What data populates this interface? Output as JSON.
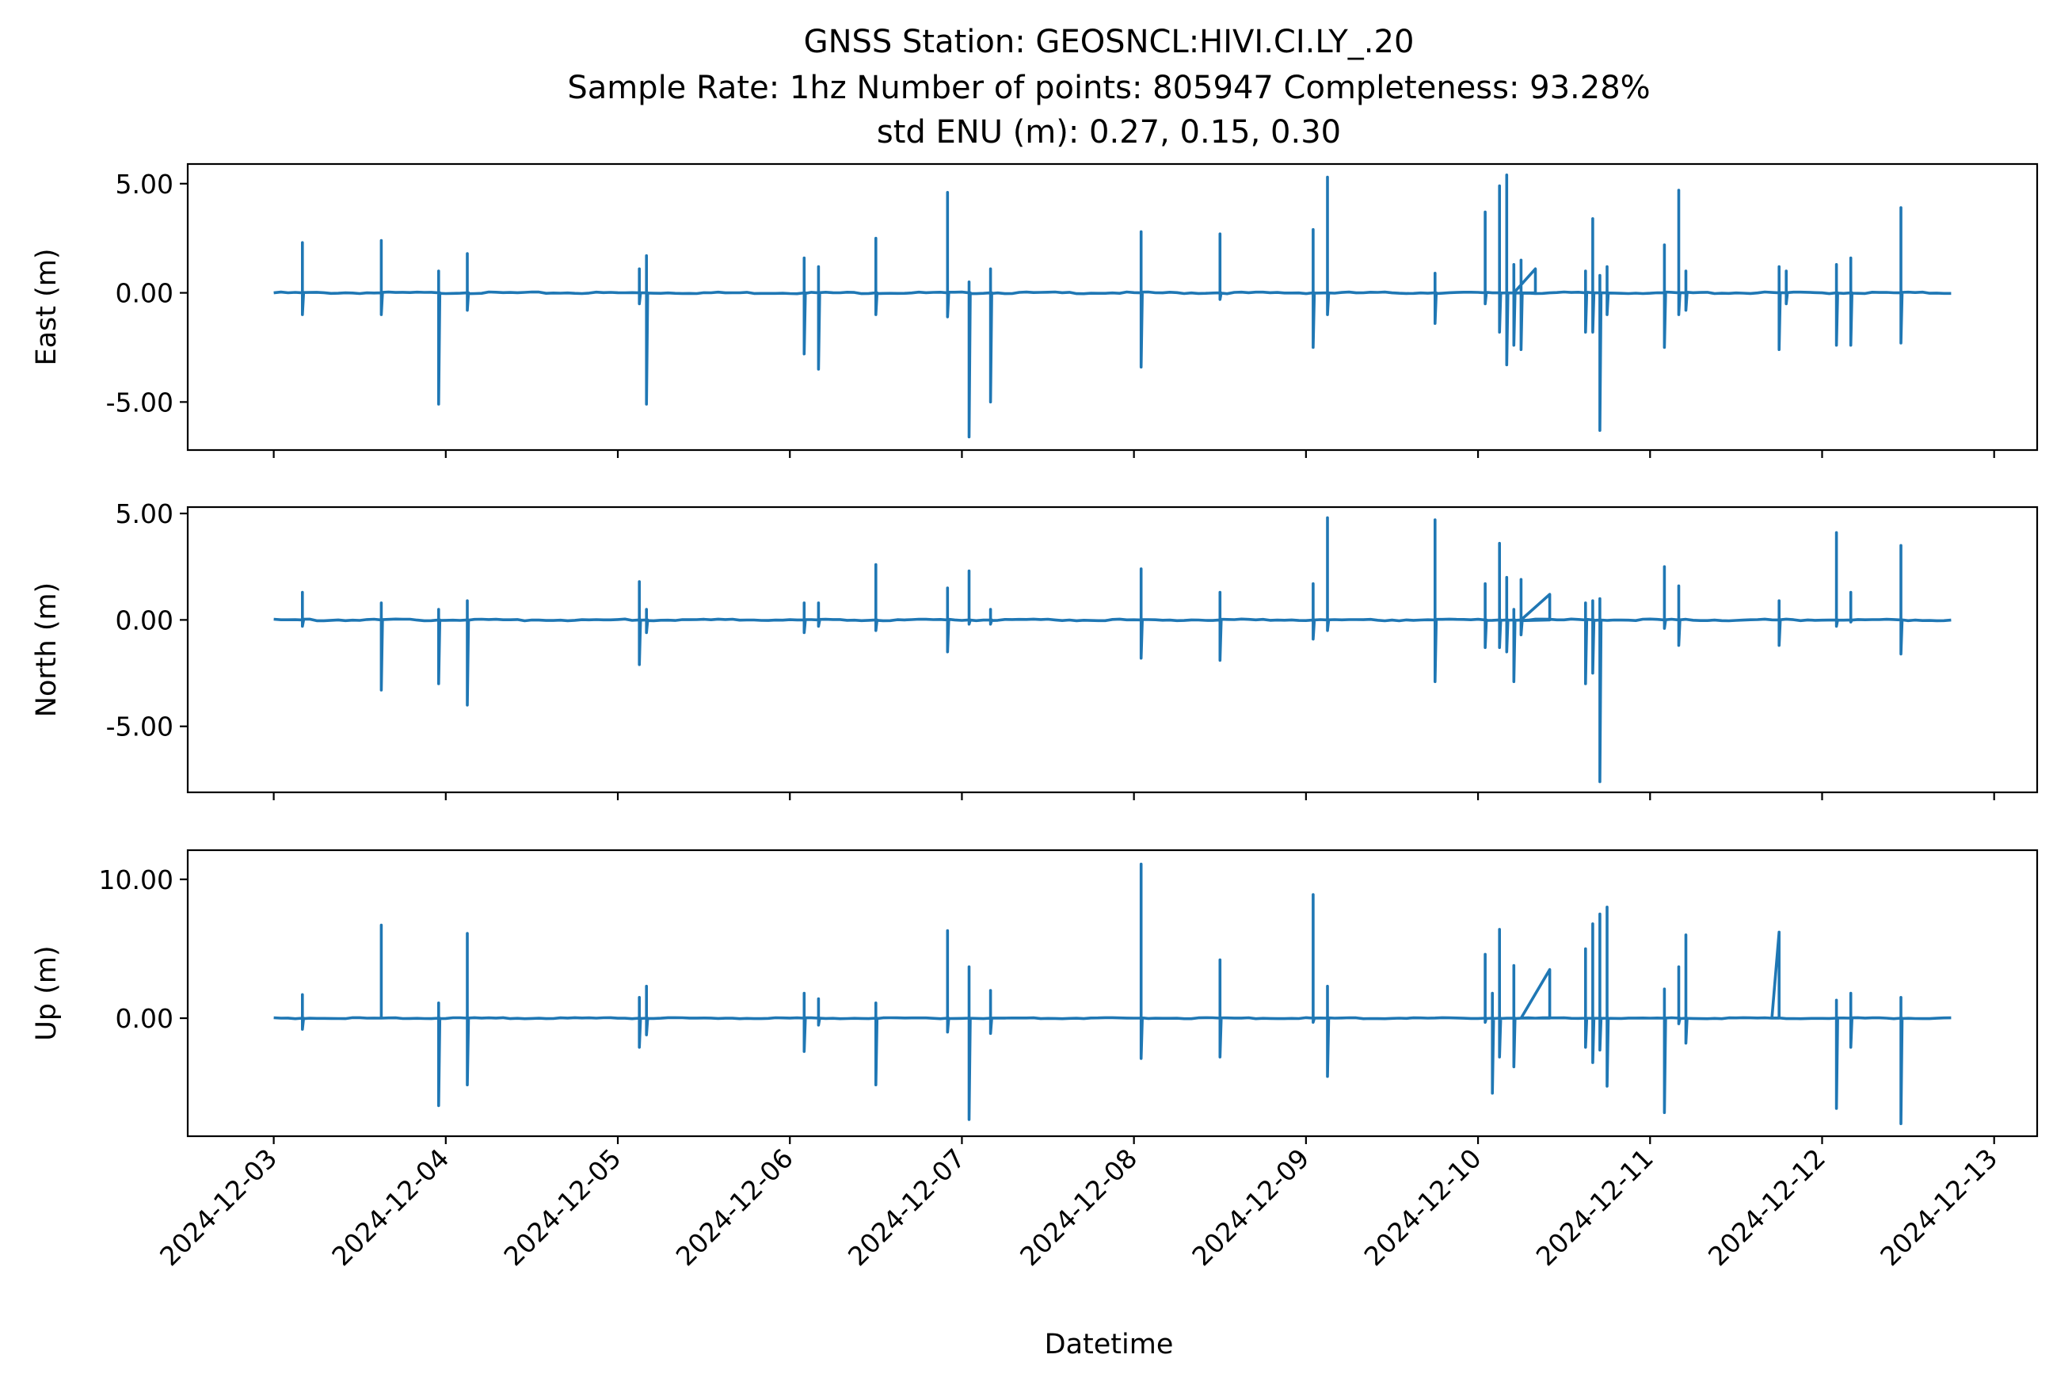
{
  "chart_data": {
    "type": "line",
    "title_lines": [
      "GNSS Station: GEOSNCL:HIVI.CI.LY_.20",
      "Sample Rate: 1hz   Number of points: 805947    Completeness:  93.28%",
      "std ENU (m):  0.27, 0.15, 0.30"
    ],
    "xlabel": "Datetime",
    "x_ticks": [
      "2024-12-03",
      "2024-12-04",
      "2024-12-05",
      "2024-12-06",
      "2024-12-07",
      "2024-12-08",
      "2024-12-09",
      "2024-12-10",
      "2024-12-11",
      "2024-12-12",
      "2024-12-13"
    ],
    "xlim": [
      "2024-12-02T12:00:00",
      "2024-12-13T06:00:00"
    ],
    "x_start": "2024-12-03T00:00:00",
    "x_end": "2024-12-12T18:00:00",
    "grid": false,
    "color": "#1f77b4",
    "panels": [
      {
        "ylabel": "East (m)",
        "ylim": [
          -7.2,
          5.9
        ],
        "yticks": [
          5,
          0,
          -5
        ],
        "ytick_labels": [
          "5.00",
          "0.00",
          "-5.00"
        ],
        "spikes": [
          [
            "2024-12-03T04:00",
            2.3,
            -1.0
          ],
          [
            "2024-12-03T15:00",
            2.4,
            -1.0
          ],
          [
            "2024-12-03T23:00",
            1.0,
            -5.1
          ],
          [
            "2024-12-04T03:00",
            1.8,
            -0.8
          ],
          [
            "2024-12-05T03:00",
            1.1,
            -0.5
          ],
          [
            "2024-12-05T04:00",
            1.7,
            -5.1
          ],
          [
            "2024-12-06T02:00",
            1.6,
            -2.8
          ],
          [
            "2024-12-06T04:00",
            1.2,
            -3.5
          ],
          [
            "2024-12-06T12:00",
            2.5,
            -1.0
          ],
          [
            "2024-12-06T22:00",
            4.6,
            -1.1
          ],
          [
            "2024-12-07T01:00",
            0.5,
            -6.6
          ],
          [
            "2024-12-07T04:00",
            1.1,
            -5.0
          ],
          [
            "2024-12-08T01:00",
            2.8,
            -3.4
          ],
          [
            "2024-12-08T12:00",
            2.7,
            -0.3
          ],
          [
            "2024-12-09T01:00",
            2.9,
            -2.5
          ],
          [
            "2024-12-09T03:00",
            5.3,
            -1.0
          ],
          [
            "2024-12-09T18:00",
            0.9,
            -1.4
          ],
          [
            "2024-12-10T01:00",
            3.7,
            -0.5
          ],
          [
            "2024-12-10T03:00",
            4.9,
            -1.8
          ],
          [
            "2024-12-10T04:00",
            5.4,
            -3.3
          ],
          [
            "2024-12-10T05:00",
            1.3,
            -2.4
          ],
          [
            "2024-12-10T06:00",
            1.5,
            -2.6
          ],
          [
            "2024-12-10T15:00",
            1.0,
            -1.8
          ],
          [
            "2024-12-10T16:00",
            3.4,
            -1.8
          ],
          [
            "2024-12-10T17:00",
            0.8,
            -6.3
          ],
          [
            "2024-12-10T18:00",
            1.2,
            -1.0
          ],
          [
            "2024-12-11T02:00",
            2.2,
            -2.5
          ],
          [
            "2024-12-11T04:00",
            4.7,
            -1.0
          ],
          [
            "2024-12-11T05:00",
            1.0,
            -0.8
          ],
          [
            "2024-12-11T18:00",
            1.2,
            -2.6
          ],
          [
            "2024-12-11T19:00",
            1.0,
            -0.5
          ],
          [
            "2024-12-12T02:00",
            1.3,
            -2.4
          ],
          [
            "2024-12-12T04:00",
            1.6,
            -2.4
          ],
          [
            "2024-12-12T11:00",
            3.9,
            -2.3
          ]
        ],
        "ramps": [
          [
            "2024-12-10T05:00",
            "2024-12-10T08:00",
            1.1
          ]
        ]
      },
      {
        "ylabel": "North (m)",
        "ylim": [
          -8.1,
          5.3
        ],
        "yticks": [
          5,
          0,
          -5
        ],
        "ytick_labels": [
          "5.00",
          "0.00",
          "-5.00"
        ],
        "spikes": [
          [
            "2024-12-03T04:00",
            1.3,
            -0.3
          ],
          [
            "2024-12-03T15:00",
            0.8,
            -3.3
          ],
          [
            "2024-12-03T23:00",
            0.5,
            -3.0
          ],
          [
            "2024-12-04T03:00",
            0.9,
            -4.0
          ],
          [
            "2024-12-05T03:00",
            1.8,
            -2.1
          ],
          [
            "2024-12-05T04:00",
            0.5,
            -0.6
          ],
          [
            "2024-12-06T02:00",
            0.8,
            -0.6
          ],
          [
            "2024-12-06T04:00",
            0.8,
            -0.3
          ],
          [
            "2024-12-06T12:00",
            2.6,
            -0.5
          ],
          [
            "2024-12-06T22:00",
            1.5,
            -1.5
          ],
          [
            "2024-12-07T01:00",
            2.3,
            -0.2
          ],
          [
            "2024-12-07T04:00",
            0.5,
            -0.2
          ],
          [
            "2024-12-08T01:00",
            2.4,
            -1.8
          ],
          [
            "2024-12-08T12:00",
            1.3,
            -1.9
          ],
          [
            "2024-12-09T01:00",
            1.7,
            -0.9
          ],
          [
            "2024-12-09T03:00",
            4.8,
            -0.5
          ],
          [
            "2024-12-09T18:00",
            4.7,
            -2.9
          ],
          [
            "2024-12-10T01:00",
            1.7,
            -1.3
          ],
          [
            "2024-12-10T03:00",
            3.6,
            -1.3
          ],
          [
            "2024-12-10T04:00",
            2.0,
            -1.5
          ],
          [
            "2024-12-10T05:00",
            0.5,
            -2.9
          ],
          [
            "2024-12-10T06:00",
            1.9,
            -0.7
          ],
          [
            "2024-12-10T15:00",
            0.8,
            -3.0
          ],
          [
            "2024-12-10T16:00",
            0.9,
            -2.5
          ],
          [
            "2024-12-10T17:00",
            1.0,
            -7.6
          ],
          [
            "2024-12-11T02:00",
            2.5,
            -0.4
          ],
          [
            "2024-12-11T04:00",
            1.6,
            -1.2
          ],
          [
            "2024-12-11T18:00",
            0.9,
            -1.2
          ],
          [
            "2024-12-12T02:00",
            4.1,
            -0.3
          ],
          [
            "2024-12-12T04:00",
            1.3,
            -0.1
          ],
          [
            "2024-12-12T11:00",
            3.5,
            -1.6
          ]
        ],
        "ramps": [
          [
            "2024-12-10T06:00",
            "2024-12-10T10:00",
            1.2
          ]
        ]
      },
      {
        "ylabel": "Up (m)",
        "ylim": [
          -8.5,
          12.1
        ],
        "yticks": [
          10,
          0
        ],
        "ytick_labels": [
          "10.00",
          "0.00"
        ],
        "spikes": [
          [
            "2024-12-03T04:00",
            1.7,
            -0.8
          ],
          [
            "2024-12-03T15:00",
            6.7,
            0.0
          ],
          [
            "2024-12-03T23:00",
            1.1,
            -6.3
          ],
          [
            "2024-12-04T03:00",
            6.1,
            -4.8
          ],
          [
            "2024-12-05T03:00",
            1.5,
            -2.1
          ],
          [
            "2024-12-05T04:00",
            2.3,
            -1.2
          ],
          [
            "2024-12-06T02:00",
            1.8,
            -2.4
          ],
          [
            "2024-12-06T04:00",
            1.4,
            -0.5
          ],
          [
            "2024-12-06T12:00",
            1.1,
            -4.8
          ],
          [
            "2024-12-06T22:00",
            6.3,
            -1.0
          ],
          [
            "2024-12-07T01:00",
            3.7,
            -7.3
          ],
          [
            "2024-12-07T04:00",
            2.0,
            -1.1
          ],
          [
            "2024-12-08T01:00",
            11.1,
            -2.9
          ],
          [
            "2024-12-08T12:00",
            4.2,
            -2.8
          ],
          [
            "2024-12-09T01:00",
            8.9,
            -0.3
          ],
          [
            "2024-12-09T03:00",
            2.3,
            -4.2
          ],
          [
            "2024-12-10T01:00",
            4.6,
            -0.3
          ],
          [
            "2024-12-10T02:00",
            1.8,
            -5.4
          ],
          [
            "2024-12-10T03:00",
            6.4,
            -2.8
          ],
          [
            "2024-12-10T05:00",
            3.8,
            -3.5
          ],
          [
            "2024-12-10T15:00",
            5.0,
            -2.1
          ],
          [
            "2024-12-10T16:00",
            6.8,
            -3.2
          ],
          [
            "2024-12-10T17:00",
            7.5,
            -2.3
          ],
          [
            "2024-12-10T18:00",
            8.0,
            -4.9
          ],
          [
            "2024-12-11T02:00",
            2.1,
            -6.8
          ],
          [
            "2024-12-11T04:00",
            3.7,
            -0.4
          ],
          [
            "2024-12-11T05:00",
            6.0,
            -1.8
          ],
          [
            "2024-12-12T02:00",
            1.3,
            -6.5
          ],
          [
            "2024-12-12T04:00",
            1.8,
            -2.1
          ],
          [
            "2024-12-12T11:00",
            1.5,
            -7.6
          ]
        ],
        "ramps": [
          [
            "2024-12-10T06:00",
            "2024-12-10T10:00",
            3.5
          ],
          [
            "2024-12-11T17:00",
            "2024-12-11T18:00",
            6.2
          ]
        ]
      }
    ]
  }
}
